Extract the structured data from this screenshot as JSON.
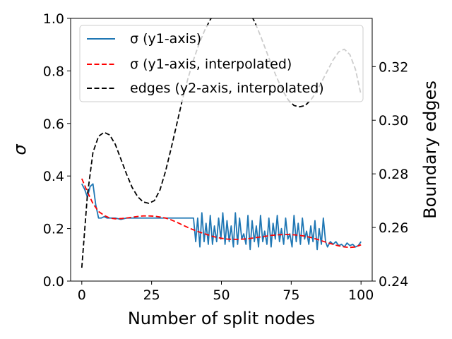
{
  "chart_data": {
    "type": "line",
    "xlabel": "Number of split nodes",
    "ylabel": "σ",
    "y2label": "Boundary edges",
    "xlim": [
      -4,
      104
    ],
    "ylim": [
      0.0,
      1.0
    ],
    "y2lim": [
      0.24,
      0.338
    ],
    "xticks": [
      0,
      25,
      50,
      75,
      100
    ],
    "yticks": [
      0.0,
      0.2,
      0.4,
      0.6,
      0.8,
      1.0
    ],
    "y2ticks": [
      0.24,
      0.26,
      0.28,
      0.3,
      0.32
    ],
    "x_tick_labels": [
      "0",
      "25",
      "50",
      "75",
      "100"
    ],
    "y_tick_labels": [
      "0.0",
      "0.2",
      "0.4",
      "0.6",
      "0.8",
      "1.0"
    ],
    "y2_tick_labels": [
      "0.24",
      "0.26",
      "0.28",
      "0.30",
      "0.32"
    ],
    "grid": false,
    "legend_position": "top",
    "series": [
      {
        "name": "σ (y1-axis)",
        "axis": "y1",
        "color": "#1f77b4",
        "dash": "solid",
        "x": [
          0,
          1,
          2,
          3,
          4,
          5,
          6,
          7,
          8,
          9,
          10,
          12,
          14,
          16,
          18,
          20,
          22,
          24,
          26,
          28,
          30,
          32,
          34,
          36,
          38,
          39,
          40,
          40.8,
          41.5,
          42.3,
          43,
          43.8,
          44.5,
          45.3,
          46,
          46.8,
          47.5,
          48.3,
          49,
          49.8,
          50.5,
          51.3,
          52,
          52.8,
          53.5,
          54.3,
          55,
          55.8,
          56.5,
          57.3,
          58,
          58.8,
          59.5,
          60.3,
          61,
          61.8,
          62.5,
          63.3,
          64,
          64.8,
          65.5,
          66.3,
          67,
          67.8,
          68.5,
          69.3,
          70,
          70.8,
          71.5,
          72.3,
          73,
          73.8,
          74.5,
          75.3,
          76,
          76.8,
          77.5,
          78.3,
          79,
          79.8,
          80.5,
          81.3,
          82,
          82.8,
          83.5,
          84.3,
          85,
          85.8,
          86.5,
          87.3,
          88,
          89,
          90,
          91,
          92,
          93,
          94,
          95,
          96,
          97,
          98,
          99,
          100
        ],
        "y": [
          0.37,
          0.35,
          0.32,
          0.36,
          0.37,
          0.29,
          0.24,
          0.24,
          0.245,
          0.24,
          0.24,
          0.24,
          0.235,
          0.24,
          0.24,
          0.24,
          0.24,
          0.24,
          0.24,
          0.24,
          0.24,
          0.24,
          0.24,
          0.24,
          0.24,
          0.24,
          0.24,
          0.15,
          0.24,
          0.13,
          0.26,
          0.15,
          0.22,
          0.14,
          0.25,
          0.14,
          0.21,
          0.15,
          0.24,
          0.16,
          0.26,
          0.14,
          0.23,
          0.15,
          0.21,
          0.13,
          0.26,
          0.14,
          0.24,
          0.16,
          0.18,
          0.14,
          0.25,
          0.12,
          0.23,
          0.15,
          0.21,
          0.13,
          0.25,
          0.15,
          0.19,
          0.14,
          0.24,
          0.13,
          0.22,
          0.16,
          0.25,
          0.15,
          0.2,
          0.14,
          0.24,
          0.16,
          0.18,
          0.13,
          0.25,
          0.15,
          0.22,
          0.14,
          0.24,
          0.16,
          0.19,
          0.14,
          0.21,
          0.15,
          0.23,
          0.12,
          0.2,
          0.14,
          0.24,
          0.15,
          0.13,
          0.15,
          0.14,
          0.15,
          0.135,
          0.14,
          0.13,
          0.145,
          0.135,
          0.14,
          0.13,
          0.135,
          0.15
        ]
      },
      {
        "name": "σ (y1-axis, interpolated)",
        "axis": "y1",
        "color": "#ff0000",
        "dash": "dashed",
        "x": [
          0,
          2,
          4,
          6,
          8,
          10,
          12,
          14,
          16,
          18,
          20,
          22,
          24,
          26,
          28,
          30,
          32,
          34,
          36,
          38,
          40,
          42,
          44,
          46,
          48,
          50,
          52,
          54,
          56,
          58,
          60,
          62,
          64,
          66,
          68,
          70,
          72,
          74,
          76,
          78,
          80,
          82,
          84,
          86,
          88,
          90,
          92,
          94,
          96,
          98,
          100
        ],
        "y": [
          0.39,
          0.34,
          0.295,
          0.265,
          0.25,
          0.24,
          0.237,
          0.238,
          0.24,
          0.243,
          0.246,
          0.248,
          0.248,
          0.247,
          0.244,
          0.24,
          0.233,
          0.224,
          0.214,
          0.204,
          0.195,
          0.187,
          0.18,
          0.173,
          0.167,
          0.163,
          0.16,
          0.159,
          0.159,
          0.16,
          0.162,
          0.165,
          0.168,
          0.171,
          0.174,
          0.176,
          0.177,
          0.177,
          0.176,
          0.174,
          0.171,
          0.166,
          0.16,
          0.153,
          0.146,
          0.14,
          0.134,
          0.13,
          0.128,
          0.13,
          0.138
        ]
      },
      {
        "name": "edges (y2-axis, interpolated)",
        "axis": "y2",
        "color": "#000000",
        "dash": "dashed",
        "x": [
          0,
          2,
          4,
          6,
          8,
          10,
          12,
          14,
          16,
          18,
          20,
          22,
          24,
          26,
          28,
          30,
          32,
          34,
          36,
          38,
          40,
          42,
          44,
          46,
          48,
          50,
          52,
          54,
          55,
          56,
          58,
          60,
          62,
          64,
          66,
          68,
          70,
          72,
          74,
          76,
          78,
          80,
          82,
          84,
          86,
          88,
          90,
          92,
          94,
          96,
          98,
          100
        ],
        "y": [
          0.245,
          0.272,
          0.288,
          0.294,
          0.2955,
          0.2945,
          0.291,
          0.2855,
          0.28,
          0.275,
          0.2715,
          0.2695,
          0.269,
          0.27,
          0.274,
          0.281,
          0.2895,
          0.2985,
          0.3075,
          0.3155,
          0.3225,
          0.3285,
          0.3335,
          0.3375,
          0.3405,
          0.3428,
          0.3442,
          0.3449,
          0.345,
          0.3448,
          0.3433,
          0.3405,
          0.3365,
          0.3315,
          0.326,
          0.3205,
          0.3155,
          0.311,
          0.3075,
          0.3055,
          0.305,
          0.3055,
          0.3075,
          0.3105,
          0.3145,
          0.3185,
          0.3225,
          0.3255,
          0.3265,
          0.3245,
          0.319,
          0.3095
        ]
      }
    ]
  }
}
